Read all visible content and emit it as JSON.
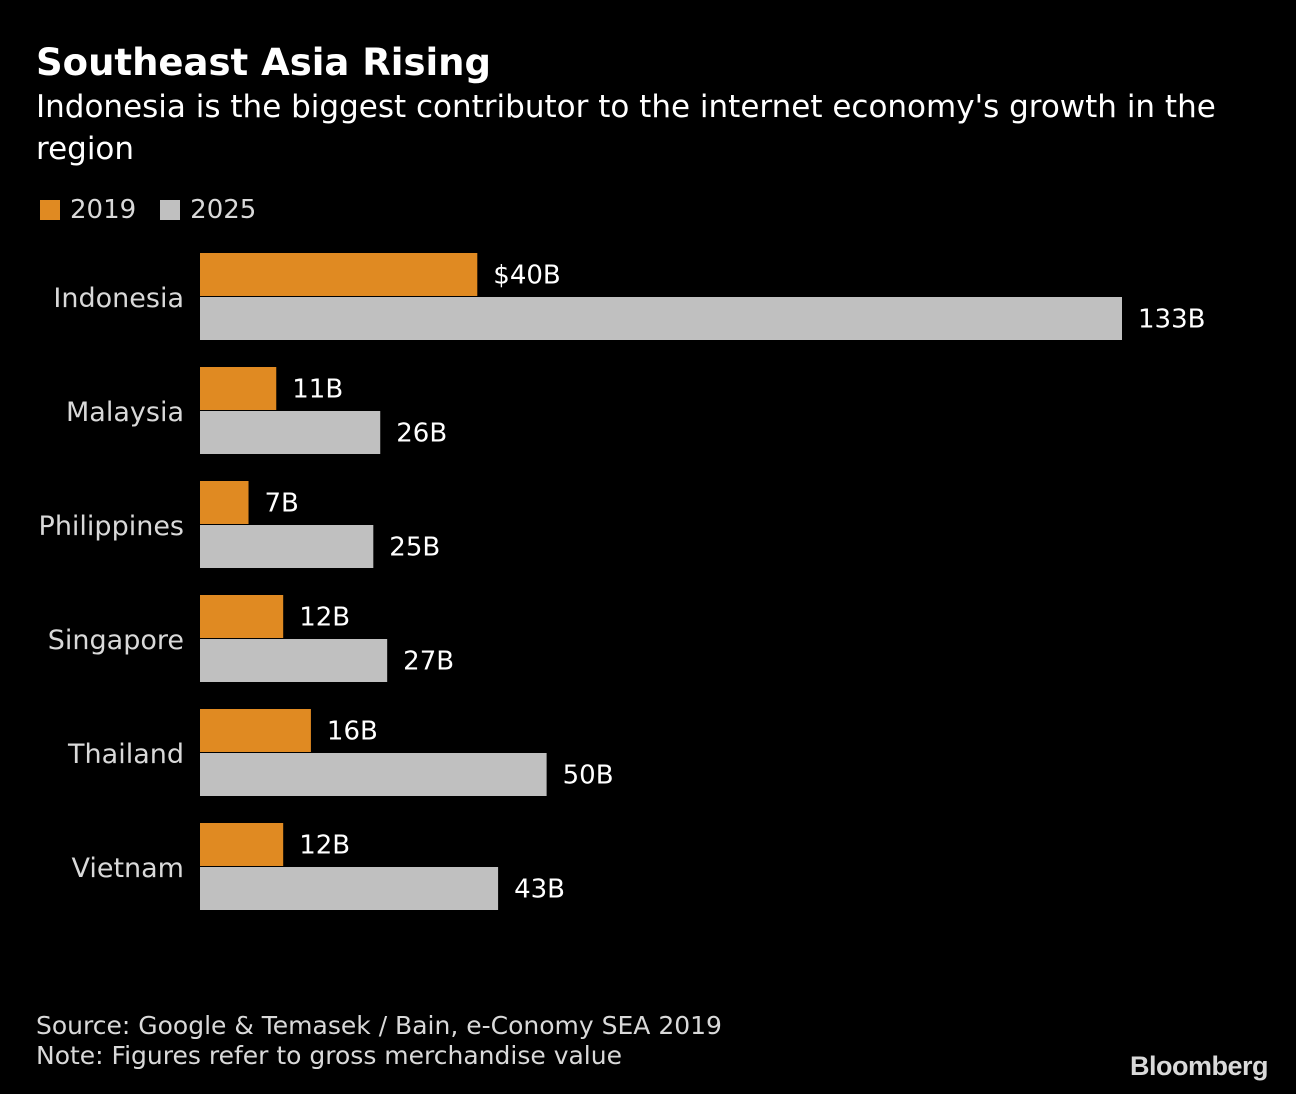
{
  "header": {
    "title": "Southeast Asia Rising",
    "subtitle": "Indonesia is the biggest contributor to the internet economy's growth in the region"
  },
  "legend": [
    {
      "label": "2019",
      "color": "#e08a22"
    },
    {
      "label": "2025",
      "color": "#c0c0c0"
    }
  ],
  "chart_data": {
    "type": "bar",
    "orientation": "horizontal",
    "title": "Southeast Asia Rising",
    "subtitle": "Indonesia is the biggest contributor to the internet economy's growth in the region",
    "xlabel": "",
    "ylabel": "",
    "unit": "B",
    "categories": [
      "Indonesia",
      "Malaysia",
      "Philippines",
      "Singapore",
      "Thailand",
      "Vietnam"
    ],
    "series": [
      {
        "name": "2019",
        "color": "#e08a22",
        "values": [
          40,
          11,
          7,
          12,
          16,
          12
        ],
        "labels": [
          "$40B",
          "11B",
          "7B",
          "12B",
          "16B",
          "12B"
        ]
      },
      {
        "name": "2025",
        "color": "#c0c0c0",
        "values": [
          133,
          26,
          25,
          27,
          50,
          43
        ],
        "labels": [
          "133B",
          "26B",
          "25B",
          "27B",
          "50B",
          "43B"
        ]
      }
    ],
    "xlim": [
      0,
      133
    ],
    "grid": false,
    "legend_position": "top-left"
  },
  "footer": {
    "source": "Source: Google & Temasek / Bain, e-Conomy SEA 2019",
    "note": "Note: Figures refer to gross merchandise value",
    "brand": "Bloomberg"
  }
}
